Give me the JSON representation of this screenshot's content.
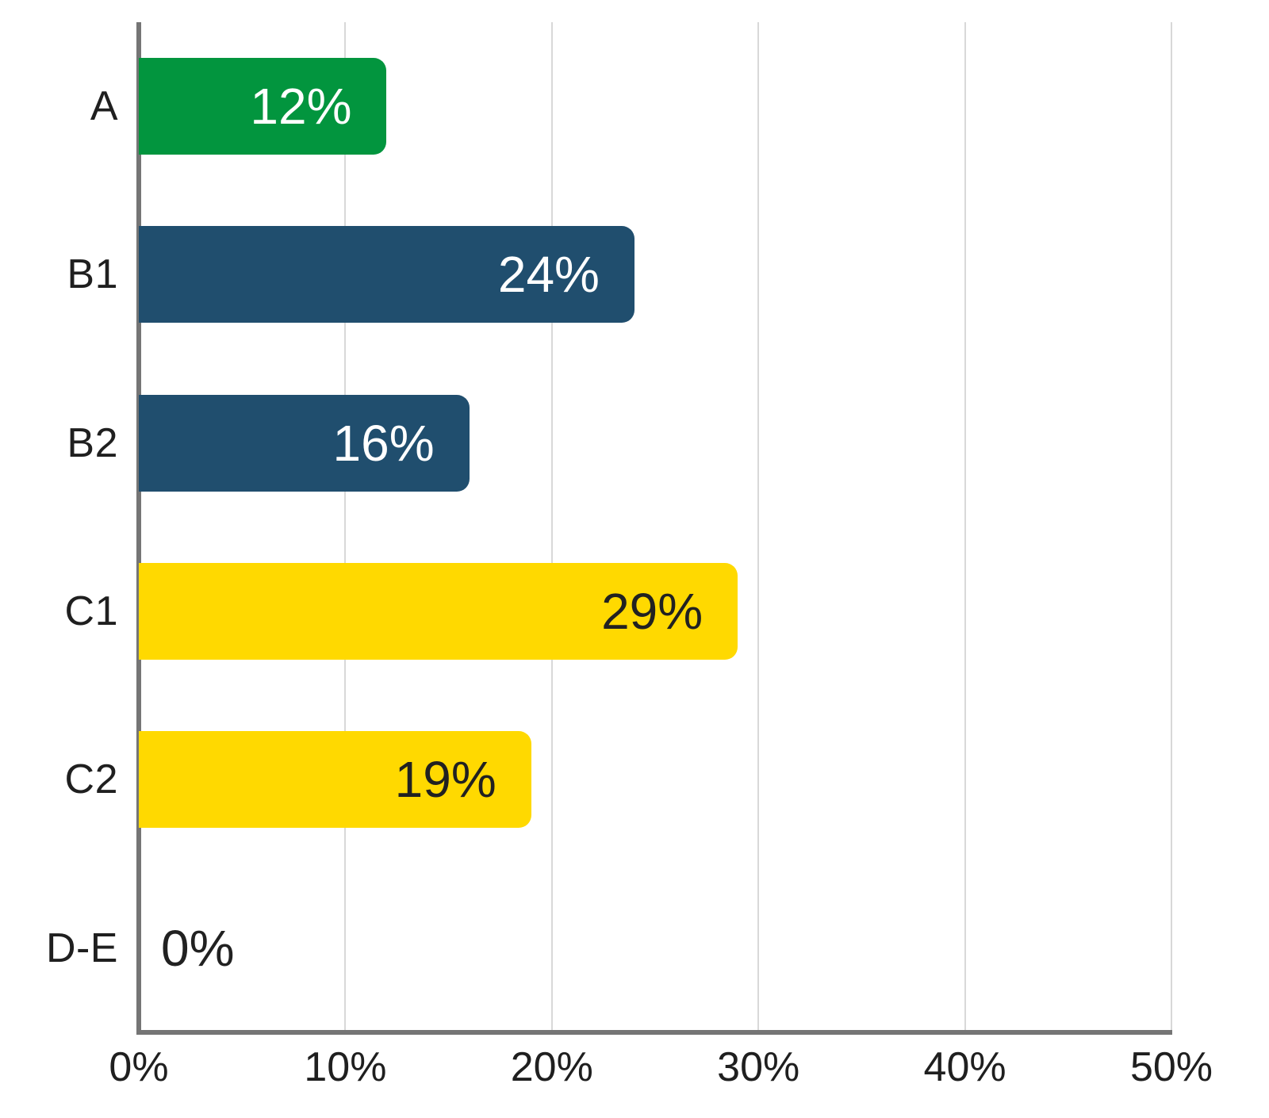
{
  "chart_data": {
    "type": "bar",
    "orientation": "horizontal",
    "title": "",
    "categories": [
      "A",
      "B1",
      "B2",
      "C1",
      "C2",
      "D-E"
    ],
    "values": [
      12,
      24,
      16,
      29,
      19,
      0
    ],
    "value_labels": [
      "12%",
      "24%",
      "16%",
      "29%",
      "19%",
      "0%"
    ],
    "bar_colors": [
      "#02953e",
      "#204e6e",
      "#204e6e",
      "#ffd900",
      "#ffd900",
      "transparent"
    ],
    "value_label_colors": [
      "#ffffff",
      "#ffffff",
      "#ffffff",
      "#212121",
      "#212121",
      "#212121"
    ],
    "xlim": [
      0,
      50
    ],
    "x_ticks": [
      "0%",
      "10%",
      "20%",
      "30%",
      "40%",
      "50%"
    ],
    "grid": true,
    "legend": "none",
    "axis_color": "#757575",
    "gridline_color": "#d8d8d8",
    "category_label_color": "#1f1f1f"
  }
}
